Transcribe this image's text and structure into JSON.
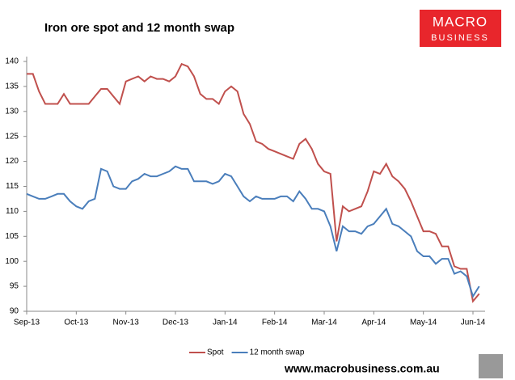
{
  "chart_data": {
    "type": "line",
    "title": "Iron ore spot and 12 month swap",
    "logo": [
      "MACRO",
      "BUSINESS"
    ],
    "footer": "www.macrobusiness.com.au",
    "categories": [
      "Sep-13",
      null,
      null,
      null,
      null,
      null,
      null,
      null,
      "Oct-13",
      null,
      null,
      null,
      null,
      null,
      null,
      null,
      "Nov-13",
      null,
      null,
      null,
      null,
      null,
      null,
      null,
      "Dec-13",
      null,
      null,
      null,
      null,
      null,
      null,
      null,
      "Jan-14",
      null,
      null,
      null,
      null,
      null,
      null,
      null,
      "Feb-14",
      null,
      null,
      null,
      null,
      null,
      null,
      null,
      "Mar-14",
      null,
      null,
      null,
      null,
      null,
      null,
      null,
      "Apr-14",
      null,
      null,
      null,
      null,
      null,
      null,
      null,
      "May-14",
      null,
      null,
      null,
      null,
      null,
      null,
      null,
      "Jun-14",
      null
    ],
    "series": [
      {
        "name": "Spot",
        "color": "#c0504d",
        "values": [
          137.5,
          137.5,
          134,
          131.5,
          131.5,
          131.5,
          133.5,
          131.5,
          131.5,
          131.5,
          131.5,
          133,
          134.5,
          134.5,
          133,
          131.5,
          136,
          136.5,
          137,
          136,
          137,
          136.5,
          136.5,
          136,
          137,
          139.5,
          139,
          137,
          133.5,
          132.5,
          132.5,
          131.5,
          134,
          135,
          134,
          129.5,
          127.5,
          124,
          123.5,
          122.5,
          122,
          121.5,
          121,
          120.5,
          123.5,
          124.5,
          122.5,
          119.5,
          118,
          117.5,
          104,
          111,
          110,
          110.5,
          111,
          114,
          118,
          117.5,
          119.5,
          117,
          116,
          114.5,
          112,
          109,
          106,
          106,
          105.5,
          103,
          103,
          99,
          98.5,
          98.5,
          92,
          93.5
        ]
      },
      {
        "name": "12 month swap",
        "color": "#4a7ebb",
        "values": [
          113.5,
          113,
          112.5,
          112.5,
          113,
          113.5,
          113.5,
          112,
          111,
          110.5,
          112,
          112.5,
          118.5,
          118,
          115,
          114.5,
          114.5,
          116,
          116.5,
          117.5,
          117,
          117,
          117.5,
          118,
          119,
          118.5,
          118.5,
          116,
          116,
          116,
          115.5,
          116,
          117.5,
          117,
          115,
          113,
          112,
          113,
          112.5,
          112.5,
          112.5,
          113,
          113,
          112,
          114,
          112.5,
          110.5,
          110.5,
          110,
          107,
          102,
          107,
          106,
          106,
          105.5,
          107,
          107.5,
          109,
          110.5,
          107.5,
          107,
          106,
          105,
          102,
          101,
          101,
          99.5,
          100.5,
          100.5,
          97.5,
          98,
          97,
          93,
          95
        ]
      }
    ],
    "ylim": [
      90,
      140
    ],
    "yticks": [
      90,
      95,
      100,
      105,
      110,
      115,
      120,
      125,
      130,
      135,
      140
    ],
    "grid": false,
    "legend": "bottom"
  }
}
